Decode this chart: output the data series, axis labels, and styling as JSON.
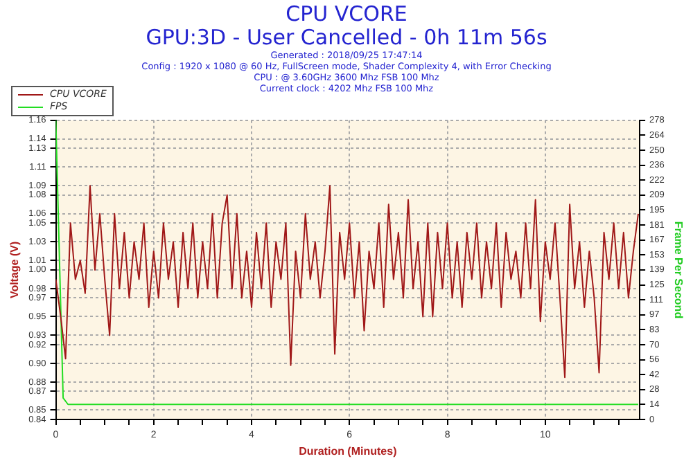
{
  "chart_data": {
    "type": "line",
    "title": "CPU VCORE",
    "subtitle": "GPU:3D - User Cancelled - 0h 11m 56s",
    "annotations": [
      "Generated : 2018/09/25 17:47:14",
      "Config : 1920 x 1080 @ 60 Hz, FullScreen mode, Shader Complexity 4, with Error Checking",
      "CPU : @ 3.60GHz 3600 Mhz FSB 100 Mhz",
      "Current clock : 4202 Mhz FSB 100 Mhz"
    ],
    "xlabel": "Duration (Minutes)",
    "ylabel": "Voltage (V)",
    "y2label": "Frame Per Second",
    "x": [
      0,
      0.1,
      0.2,
      0.3,
      0.4,
      0.5,
      0.6,
      0.7,
      0.8,
      0.9,
      1.0,
      1.1,
      1.2,
      1.3,
      1.4,
      1.5,
      1.6,
      1.7,
      1.8,
      1.9,
      2.0,
      2.1,
      2.2,
      2.3,
      2.4,
      2.5,
      2.6,
      2.7,
      2.8,
      2.9,
      3.0,
      3.1,
      3.2,
      3.3,
      3.4,
      3.5,
      3.6,
      3.7,
      3.8,
      3.9,
      4.0,
      4.1,
      4.2,
      4.3,
      4.4,
      4.5,
      4.6,
      4.7,
      4.8,
      4.9,
      5.0,
      5.1,
      5.2,
      5.3,
      5.4,
      5.5,
      5.6,
      5.7,
      5.8,
      5.9,
      6.0,
      6.1,
      6.2,
      6.3,
      6.4,
      6.5,
      6.6,
      6.7,
      6.8,
      6.9,
      7.0,
      7.1,
      7.2,
      7.3,
      7.4,
      7.5,
      7.6,
      7.7,
      7.8,
      7.9,
      8.0,
      8.1,
      8.2,
      8.3,
      8.4,
      8.5,
      8.6,
      8.7,
      8.8,
      8.9,
      9.0,
      9.1,
      9.2,
      9.3,
      9.4,
      9.5,
      9.6,
      9.7,
      9.8,
      9.9,
      10.0,
      10.1,
      10.2,
      10.3,
      10.4,
      10.5,
      10.6,
      10.7,
      10.8,
      10.9,
      11.0,
      11.1,
      11.2,
      11.3,
      11.4,
      11.5,
      11.6,
      11.7,
      11.8,
      11.9
    ],
    "series": [
      {
        "name": "CPU VCORE",
        "color": "#a01818",
        "values": [
          0.99,
          0.95,
          0.905,
          1.05,
          0.99,
          1.01,
          0.975,
          1.09,
          1.0,
          1.06,
          0.99,
          0.93,
          1.06,
          0.98,
          1.04,
          0.97,
          1.03,
          0.99,
          1.05,
          0.96,
          1.02,
          0.97,
          1.05,
          0.99,
          1.03,
          0.96,
          1.04,
          0.98,
          1.05,
          0.97,
          1.03,
          0.98,
          1.06,
          0.97,
          1.05,
          1.08,
          0.98,
          1.06,
          0.97,
          1.02,
          0.96,
          1.04,
          0.98,
          1.05,
          0.96,
          1.03,
          0.99,
          1.05,
          0.898,
          1.02,
          0.97,
          1.06,
          0.99,
          1.03,
          0.97,
          1.02,
          1.09,
          0.91,
          1.04,
          0.99,
          1.05,
          0.97,
          1.03,
          0.935,
          1.02,
          0.98,
          1.05,
          0.96,
          1.07,
          0.99,
          1.04,
          0.97,
          1.075,
          0.98,
          1.03,
          0.95,
          1.05,
          0.95,
          1.04,
          0.98,
          1.05,
          0.97,
          1.03,
          0.96,
          1.04,
          0.99,
          1.05,
          0.97,
          1.03,
          0.98,
          1.05,
          0.96,
          1.04,
          0.99,
          1.02,
          0.97,
          1.05,
          0.98,
          1.075,
          0.945,
          1.03,
          0.99,
          1.05,
          0.97,
          0.885,
          1.07,
          0.98,
          1.03,
          0.96,
          1.02,
          0.97,
          0.89,
          1.04,
          0.99,
          1.05,
          0.98,
          1.04,
          0.97,
          1.02,
          1.06
        ]
      },
      {
        "name": "FPS",
        "color": "#22dd22",
        "axis": "y2",
        "x": [
          0,
          0.15,
          0.25,
          11.9
        ],
        "values": [
          278,
          20,
          14,
          14
        ]
      }
    ],
    "xlim": [
      0,
      11.93
    ],
    "xticks": [
      0,
      {
        "value": 0.5,
        "label": null
      },
      {
        "value": 1,
        "label": null
      },
      {
        "value": 1.5,
        "label": null
      },
      2,
      {
        "value": 2.5,
        "label": null
      },
      {
        "value": 3,
        "label": null
      },
      {
        "value": 3.5,
        "label": null
      },
      4,
      {
        "value": 4.5,
        "label": null
      },
      {
        "value": 5,
        "label": null
      },
      {
        "value": 5.5,
        "label": null
      },
      6,
      {
        "value": 6.5,
        "label": null
      },
      {
        "value": 7,
        "label": null
      },
      {
        "value": 7.5,
        "label": null
      },
      8,
      {
        "value": 8.5,
        "label": null
      },
      {
        "value": 9,
        "label": null
      },
      {
        "value": 9.5,
        "label": null
      },
      10,
      {
        "value": 10.5,
        "label": null
      },
      {
        "value": 11,
        "label": null
      },
      {
        "value": 11.5,
        "label": null
      }
    ],
    "ylim": [
      0.84,
      1.16
    ],
    "yticks": [
      0.84,
      0.85,
      0.87,
      0.88,
      {
        "value": 0.9,
        "label": "0.90"
      },
      0.92,
      0.93,
      0.95,
      0.97,
      0.98,
      {
        "value": 1.0,
        "label": "1.00"
      },
      1.01,
      1.03,
      1.05,
      1.06,
      1.08,
      1.09,
      1.11,
      1.13,
      1.14,
      1.16
    ],
    "y2lim": [
      0,
      278
    ],
    "y2ticks": [
      0,
      {
        "value": 13.9,
        "label": "14"
      },
      {
        "value": 27.8,
        "label": "28"
      },
      {
        "value": 41.7,
        "label": "42"
      },
      {
        "value": 55.6,
        "label": "56"
      },
      {
        "value": 69.5,
        "label": "70"
      },
      {
        "value": 83.4,
        "label": "83"
      },
      {
        "value": 97.3,
        "label": "97"
      },
      {
        "value": 111.2,
        "label": "111"
      },
      {
        "value": 125.1,
        "label": "125"
      },
      139,
      {
        "value": 152.9,
        "label": "153"
      },
      {
        "value": 166.8,
        "label": "167"
      },
      {
        "value": 180.7,
        "label": "181"
      },
      {
        "value": 194.6,
        "label": "195"
      },
      {
        "value": 208.5,
        "label": "209"
      },
      {
        "value": 222.4,
        "label": "222"
      },
      {
        "value": 236.3,
        "label": "236"
      },
      {
        "value": 250.2,
        "label": "250"
      },
      {
        "value": 264.1,
        "label": "264"
      },
      278
    ],
    "grid": true,
    "legend": "top left",
    "marker": "none",
    "line_style": "solid"
  }
}
